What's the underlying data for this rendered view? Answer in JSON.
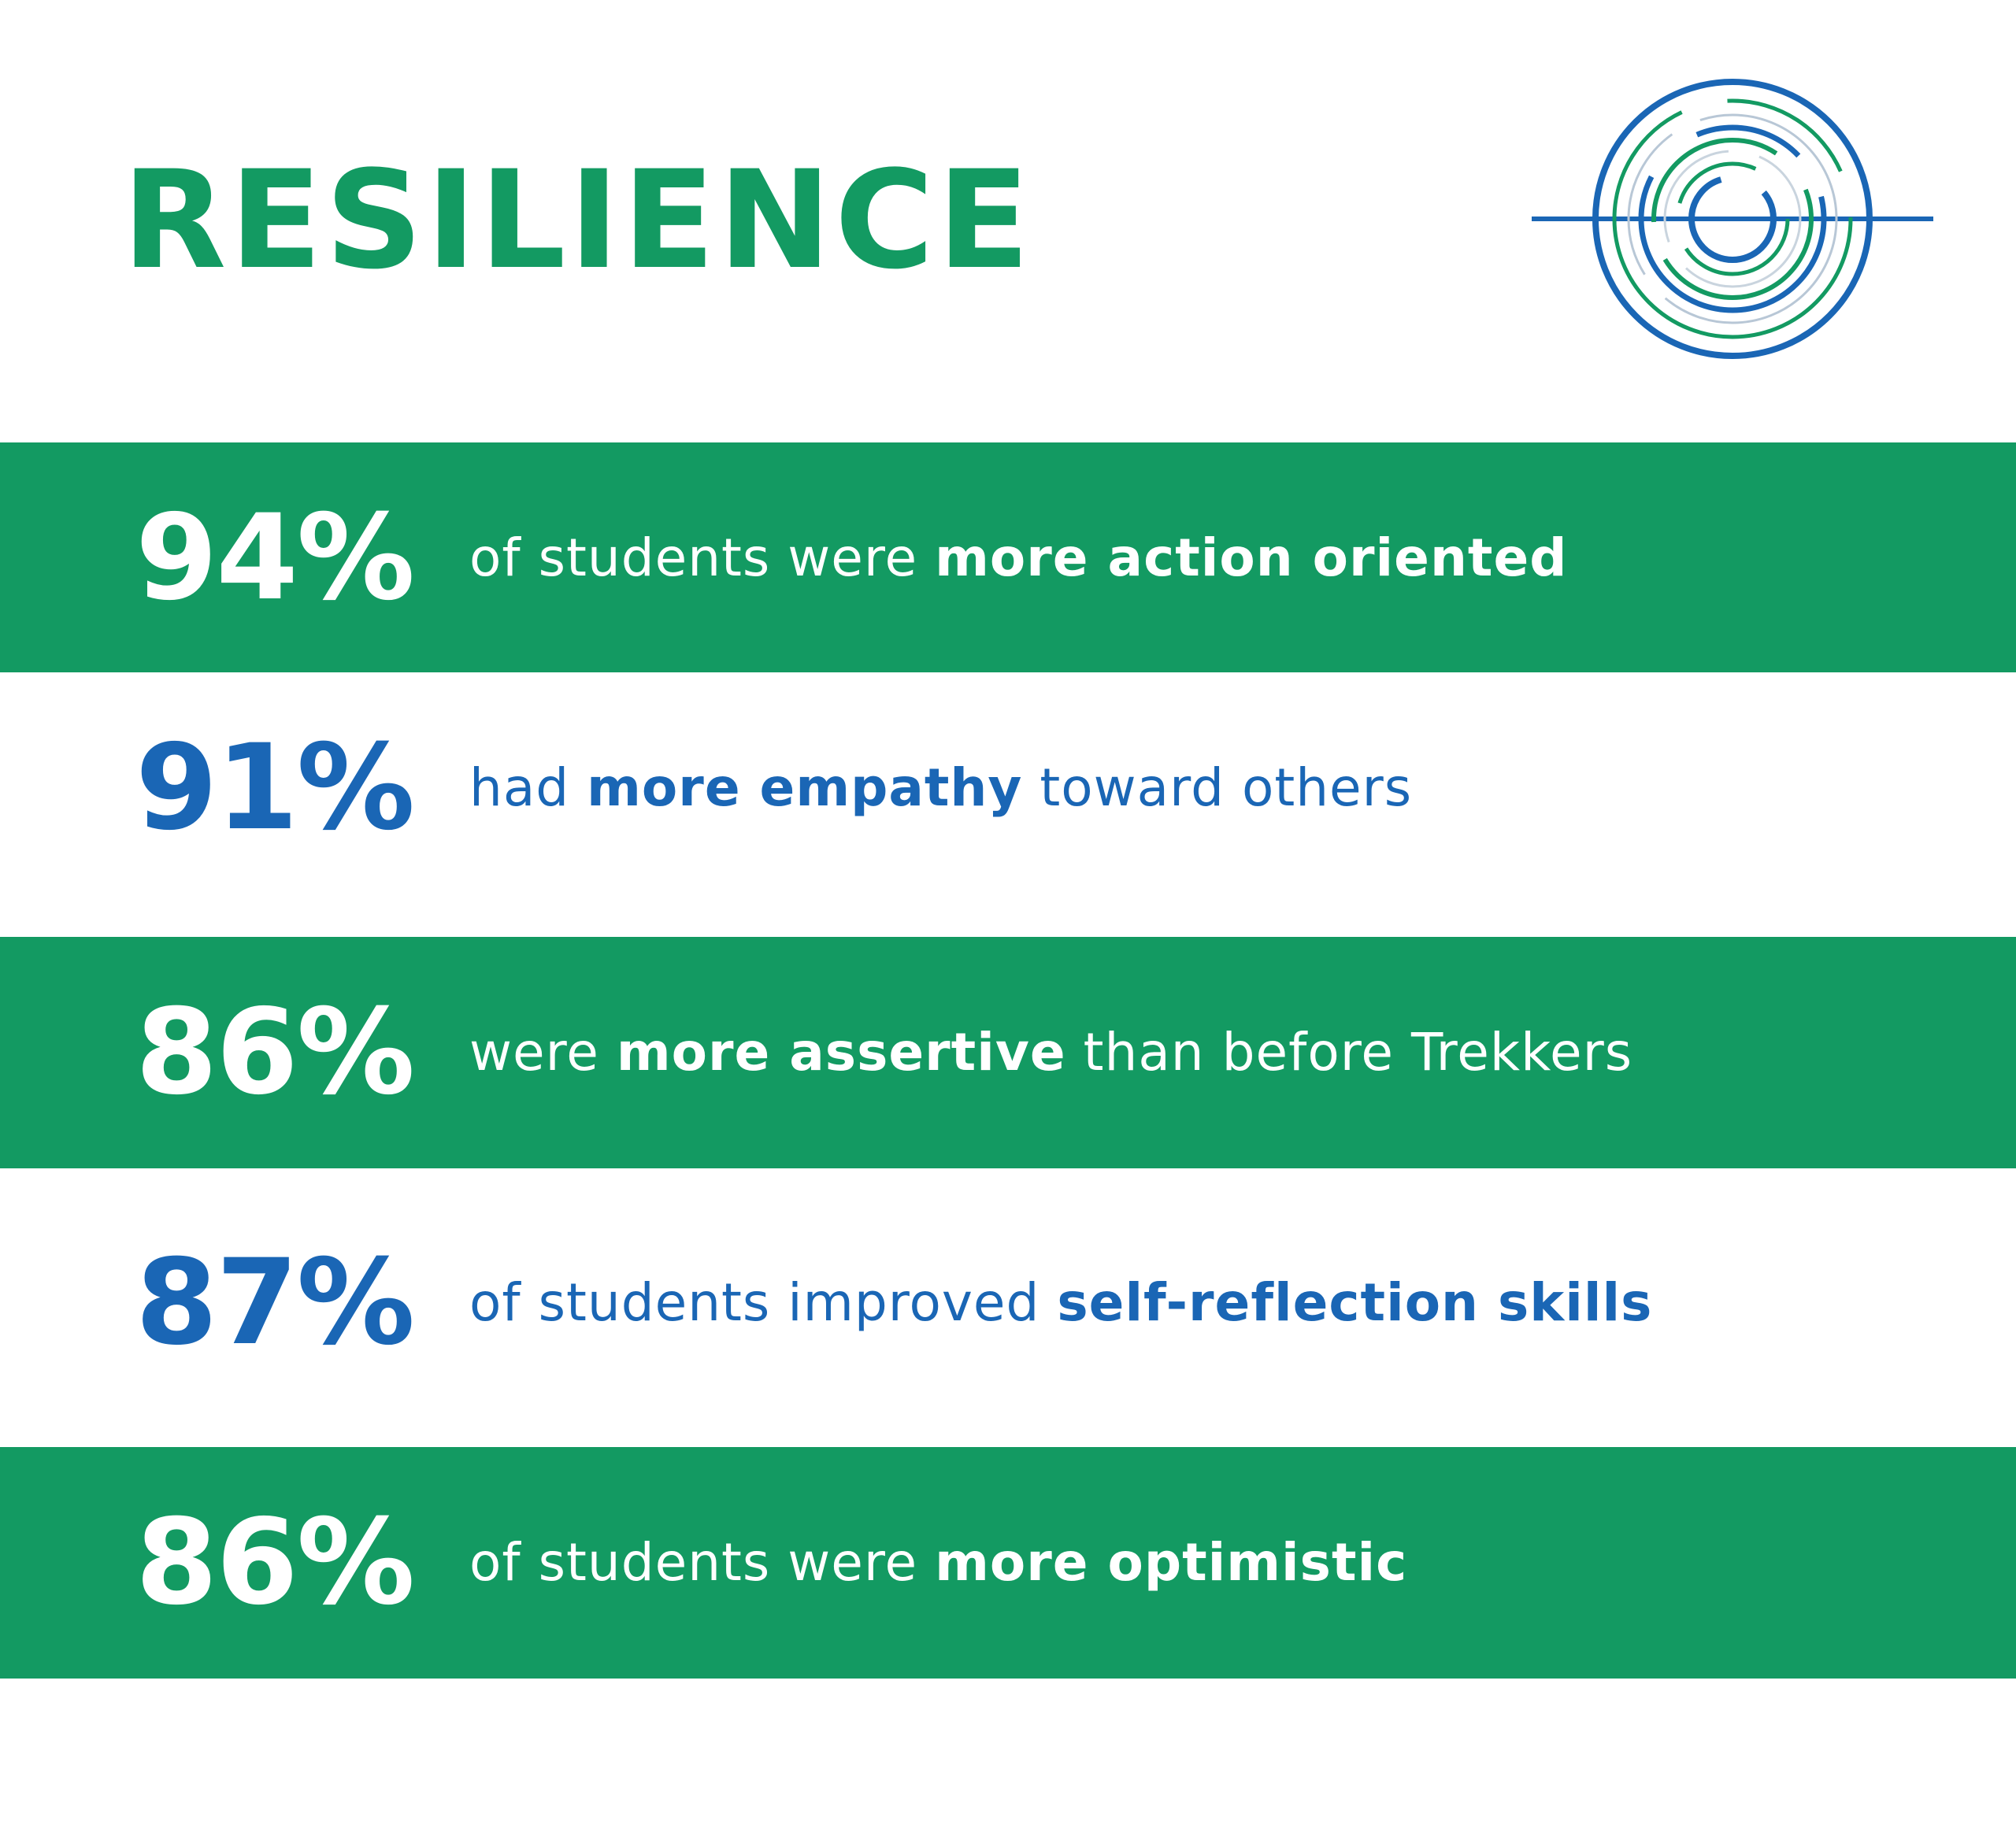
{
  "title": "RESILIENCE",
  "colors": {
    "green": "#139a62",
    "blue": "#1a66b5",
    "white": "#ffffff"
  },
  "logo": {
    "icon": "concentric-rings-icon"
  },
  "stats": [
    {
      "percent": "94%",
      "style": "green",
      "segments": [
        {
          "text": "of students were ",
          "bold": false
        },
        {
          "text": "more action oriented",
          "bold": true
        }
      ]
    },
    {
      "percent": "91%",
      "style": "white",
      "segments": [
        {
          "text": "had ",
          "bold": false
        },
        {
          "text": "more empathy",
          "bold": true
        },
        {
          "text": " toward others",
          "bold": false
        }
      ]
    },
    {
      "percent": "86%",
      "style": "green",
      "segments": [
        {
          "text": "were ",
          "bold": false
        },
        {
          "text": "more assertive",
          "bold": true
        },
        {
          "text": " than before Trekkers",
          "bold": false
        }
      ]
    },
    {
      "percent": "87%",
      "style": "white",
      "segments": [
        {
          "text": "of students improved ",
          "bold": false
        },
        {
          "text": "self-reflection skills",
          "bold": true
        }
      ]
    },
    {
      "percent": "86%",
      "style": "green",
      "segments": [
        {
          "text": "of students were ",
          "bold": false
        },
        {
          "text": "more optimistic",
          "bold": true
        }
      ]
    }
  ]
}
